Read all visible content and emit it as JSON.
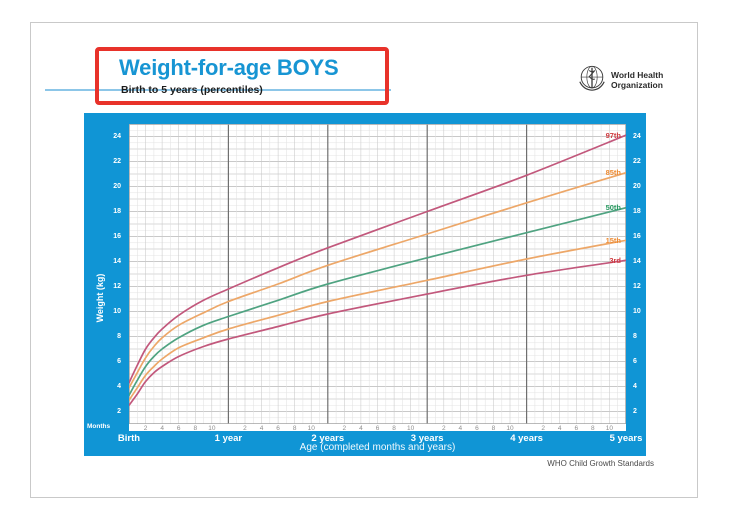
{
  "header": {
    "title": "Weight-for-age BOYS",
    "subtitle": "Birth to 5 years (percentiles)",
    "logo": {
      "line1": "World Health",
      "line2": "Organization"
    }
  },
  "footer": {
    "credit": "WHO Child Growth Standards"
  },
  "colors": {
    "chart_bg": "#1095d5",
    "title_blue": "#1795d3",
    "highlight_box_red": "#e8322a",
    "title_rule_blue": "#8cc6e8"
  },
  "chart_data": {
    "type": "line",
    "title": "Weight-for-age BOYS",
    "subtitle": "Birth to 5 years (percentiles)",
    "xlabel": "Age (completed months and years)",
    "ylabel": "Weight (kg)",
    "x_unit_label": "Months",
    "grid": true,
    "legend_position": "right-inline",
    "xlim_months": [
      0,
      60
    ],
    "ylim": [
      1,
      25
    ],
    "y_ticks": [
      2,
      4,
      6,
      8,
      10,
      12,
      14,
      16,
      18,
      20,
      22,
      24
    ],
    "x_year_ticks": [
      {
        "month": 0,
        "label": "Birth"
      },
      {
        "month": 12,
        "label": "1 year"
      },
      {
        "month": 24,
        "label": "2 years"
      },
      {
        "month": 36,
        "label": "3 years"
      },
      {
        "month": 48,
        "label": "4 years"
      },
      {
        "month": 60,
        "label": "5 years"
      }
    ],
    "x_month_minor_ticks": [
      2,
      4,
      6,
      8,
      10
    ],
    "x_months": [
      0,
      1,
      2,
      3,
      4,
      6,
      9,
      12,
      18,
      24,
      36,
      48,
      60
    ],
    "series": [
      {
        "name": "97th",
        "line_color": "#c2587c",
        "label_color": "#cf3a3f",
        "values": [
          4.3,
          5.7,
          7.0,
          7.9,
          8.6,
          9.7,
          10.9,
          11.8,
          13.5,
          15.1,
          18.0,
          20.9,
          24.1
        ]
      },
      {
        "name": "85th",
        "line_color": "#eda768",
        "label_color": "#ee8a30",
        "values": [
          3.9,
          5.1,
          6.3,
          7.2,
          7.9,
          8.9,
          9.9,
          10.8,
          12.2,
          13.7,
          16.2,
          18.7,
          21.1
        ]
      },
      {
        "name": "50th",
        "line_color": "#4fa381",
        "label_color": "#27985f",
        "values": [
          3.3,
          4.5,
          5.6,
          6.4,
          7.0,
          7.9,
          8.9,
          9.6,
          10.9,
          12.2,
          14.3,
          16.3,
          18.3
        ]
      },
      {
        "name": "15th",
        "line_color": "#eda768",
        "label_color": "#ee8a30",
        "values": [
          2.9,
          3.9,
          4.9,
          5.6,
          6.2,
          7.1,
          7.9,
          8.6,
          9.7,
          10.8,
          12.5,
          14.2,
          15.7
        ]
      },
      {
        "name": "3rd",
        "line_color": "#c2587c",
        "label_color": "#cf3a3f",
        "values": [
          2.5,
          3.4,
          4.4,
          5.1,
          5.6,
          6.4,
          7.2,
          7.8,
          8.8,
          9.8,
          11.4,
          12.9,
          14.1
        ]
      }
    ]
  }
}
